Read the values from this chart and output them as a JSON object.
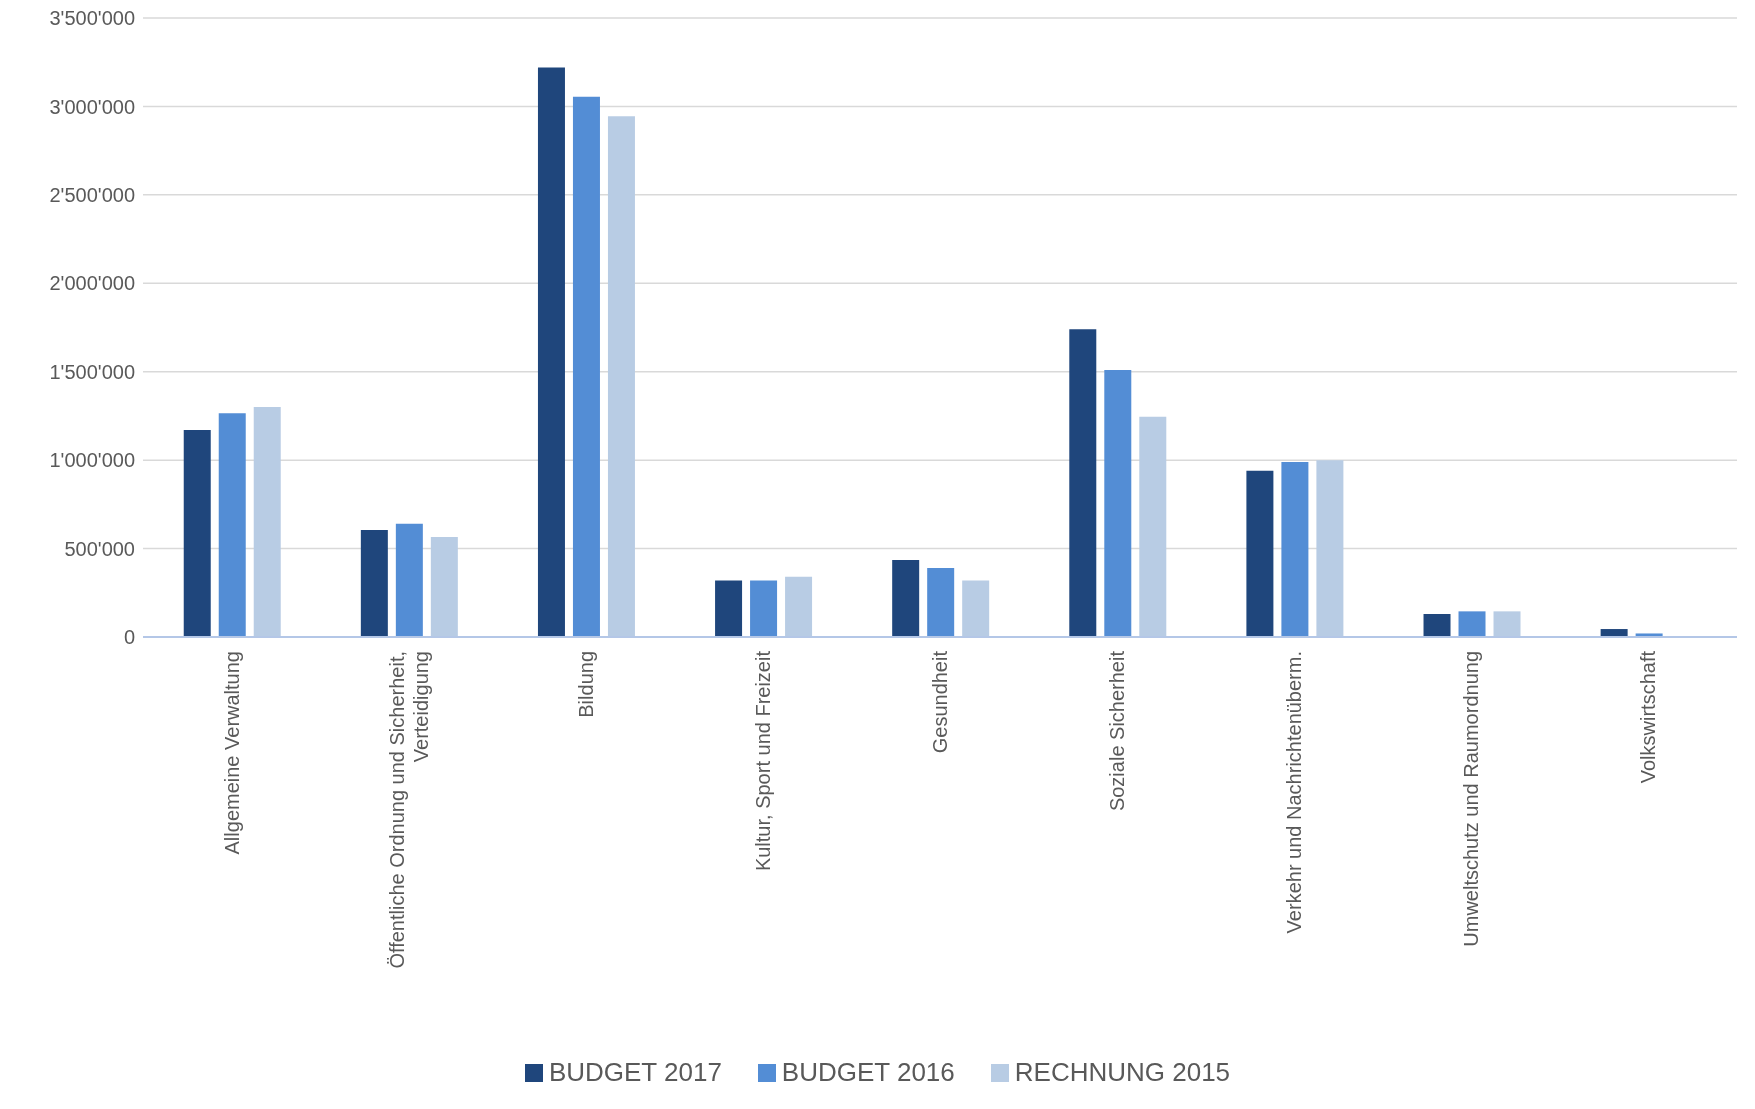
{
  "chart_data": {
    "type": "bar",
    "categories": [
      "Allgemeine Verwaltung",
      "Öffentliche Ordnung und Sicherheit, Verteidigung",
      "Bildung",
      "Kultur, Sport und Freizeit",
      "Gesundheit",
      "Soziale Sicherheit",
      "Verkehr und Nachrichtenüberm.",
      "Umweltschutz und Raumordnung",
      "Volkswirtschaft"
    ],
    "series": [
      {
        "name": "BUDGET 2017",
        "color": "#1f467c",
        "values": [
          1170000,
          605000,
          3220000,
          320000,
          435000,
          1740000,
          940000,
          130000,
          45000
        ]
      },
      {
        "name": "BUDGET 2016",
        "color": "#538dd5",
        "values": [
          1265000,
          640000,
          3055000,
          320000,
          390000,
          1510000,
          990000,
          145000,
          20000
        ]
      },
      {
        "name": "RECHNUNG 2015",
        "color": "#b8cce4",
        "values": [
          1300000,
          565000,
          2945000,
          340000,
          320000,
          1245000,
          1000000,
          145000,
          0
        ]
      }
    ],
    "ylim": [
      0,
      3500000
    ],
    "yticks": [
      0,
      {
        "value": 500000,
        "label": "500'000"
      },
      {
        "value": 1000000,
        "label": "1'000'000"
      },
      {
        "value": 1500000,
        "label": "1'500'000"
      },
      {
        "value": 2000000,
        "label": "2'000'000"
      },
      {
        "value": 2500000,
        "label": "2'500'000"
      },
      {
        "value": 3000000,
        "label": "3'000'000"
      },
      {
        "value": 3500000,
        "label": "3'500'000"
      }
    ],
    "grid": "y",
    "legend": "bottom"
  }
}
